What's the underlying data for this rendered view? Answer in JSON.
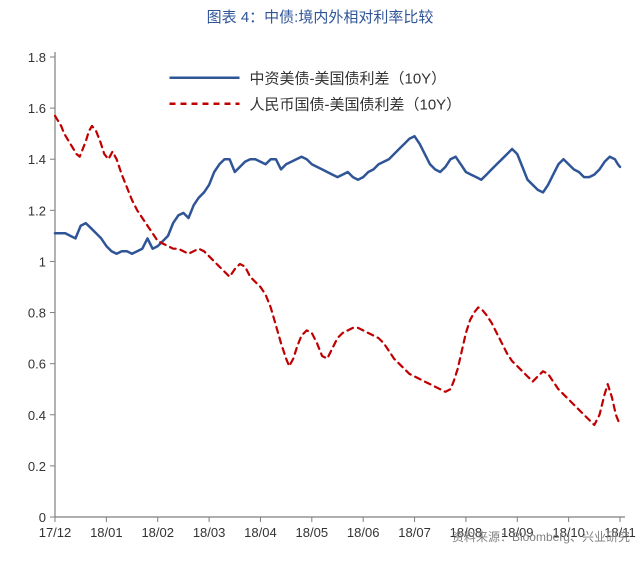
{
  "title": "图表 4：中债:境内外相对利率比较",
  "title_color": "#2f5597",
  "title_fontsize": 15,
  "source": "资料来源：Bloomberg、兴业研究",
  "source_color": "#7f7f7f",
  "chart": {
    "type": "line",
    "background_color": "#ffffff",
    "axis_color": "#7f7f7f",
    "tick_color": "#7f7f7f",
    "tick_fontsize": 13,
    "y": {
      "min": 0,
      "max": 1.8,
      "step": 0.2
    },
    "x": {
      "labels": [
        "17/12",
        "18/01",
        "18/02",
        "18/03",
        "18/04",
        "18/05",
        "18/06",
        "18/07",
        "18/08",
        "18/09",
        "18/10",
        "18/11"
      ]
    },
    "legend": {
      "x": 0.3,
      "y_top": 0.045,
      "fontsize": 15,
      "text_color": "#333333"
    },
    "series": [
      {
        "name": "中资美债-美国债利差（10Y）",
        "color": "#2f5597",
        "width": 2.5,
        "dash": "none",
        "points": [
          [
            0.0,
            1.11
          ],
          [
            0.05,
            1.11
          ],
          [
            0.1,
            1.11
          ],
          [
            0.15,
            1.1
          ],
          [
            0.2,
            1.09
          ],
          [
            0.25,
            1.14
          ],
          [
            0.3,
            1.15
          ],
          [
            0.35,
            1.13
          ],
          [
            0.4,
            1.11
          ],
          [
            0.45,
            1.09
          ],
          [
            0.5,
            1.06
          ],
          [
            0.55,
            1.04
          ],
          [
            0.6,
            1.03
          ],
          [
            0.65,
            1.04
          ],
          [
            0.7,
            1.04
          ],
          [
            0.75,
            1.03
          ],
          [
            0.8,
            1.04
          ],
          [
            0.85,
            1.05
          ],
          [
            0.9,
            1.09
          ],
          [
            0.95,
            1.05
          ],
          [
            1.0,
            1.06
          ],
          [
            1.05,
            1.08
          ],
          [
            1.1,
            1.1
          ],
          [
            1.15,
            1.15
          ],
          [
            1.2,
            1.18
          ],
          [
            1.25,
            1.19
          ],
          [
            1.3,
            1.17
          ],
          [
            1.35,
            1.22
          ],
          [
            1.4,
            1.25
          ],
          [
            1.45,
            1.27
          ],
          [
            1.5,
            1.3
          ],
          [
            1.55,
            1.35
          ],
          [
            1.6,
            1.38
          ],
          [
            1.65,
            1.4
          ],
          [
            1.7,
            1.4
          ],
          [
            1.75,
            1.35
          ],
          [
            1.8,
            1.37
          ],
          [
            1.85,
            1.39
          ],
          [
            1.9,
            1.4
          ],
          [
            1.95,
            1.4
          ],
          [
            2.0,
            1.39
          ],
          [
            2.05,
            1.38
          ],
          [
            2.1,
            1.4
          ],
          [
            2.15,
            1.4
          ],
          [
            2.2,
            1.36
          ],
          [
            2.25,
            1.38
          ],
          [
            2.3,
            1.39
          ],
          [
            2.35,
            1.4
          ],
          [
            2.4,
            1.41
          ],
          [
            2.45,
            1.4
          ],
          [
            2.5,
            1.38
          ],
          [
            2.55,
            1.37
          ],
          [
            2.6,
            1.36
          ],
          [
            2.65,
            1.35
          ],
          [
            2.7,
            1.34
          ],
          [
            2.75,
            1.33
          ],
          [
            2.8,
            1.34
          ],
          [
            2.85,
            1.35
          ],
          [
            2.9,
            1.33
          ],
          [
            2.95,
            1.32
          ],
          [
            3.0,
            1.33
          ],
          [
            3.05,
            1.35
          ],
          [
            3.1,
            1.36
          ],
          [
            3.15,
            1.38
          ],
          [
            3.2,
            1.39
          ],
          [
            3.25,
            1.4
          ],
          [
            3.3,
            1.42
          ],
          [
            3.35,
            1.44
          ],
          [
            3.4,
            1.46
          ],
          [
            3.45,
            1.48
          ],
          [
            3.5,
            1.49
          ],
          [
            3.55,
            1.46
          ],
          [
            3.6,
            1.42
          ],
          [
            3.65,
            1.38
          ],
          [
            3.7,
            1.36
          ],
          [
            3.75,
            1.35
          ],
          [
            3.8,
            1.37
          ],
          [
            3.85,
            1.4
          ],
          [
            3.9,
            1.41
          ],
          [
            3.95,
            1.38
          ],
          [
            4.0,
            1.35
          ],
          [
            4.05,
            1.34
          ],
          [
            4.1,
            1.33
          ],
          [
            4.15,
            1.32
          ],
          [
            4.2,
            1.34
          ],
          [
            4.25,
            1.36
          ],
          [
            4.3,
            1.38
          ],
          [
            4.35,
            1.4
          ],
          [
            4.4,
            1.42
          ],
          [
            4.45,
            1.44
          ],
          [
            4.5,
            1.42
          ],
          [
            4.55,
            1.37
          ],
          [
            4.6,
            1.32
          ],
          [
            4.65,
            1.3
          ],
          [
            4.7,
            1.28
          ],
          [
            4.75,
            1.27
          ],
          [
            4.8,
            1.3
          ],
          [
            4.85,
            1.34
          ],
          [
            4.9,
            1.38
          ],
          [
            4.95,
            1.4
          ],
          [
            5.0,
            1.38
          ],
          [
            5.05,
            1.36
          ],
          [
            5.1,
            1.35
          ],
          [
            5.15,
            1.33
          ],
          [
            5.2,
            1.33
          ],
          [
            5.25,
            1.34
          ],
          [
            5.3,
            1.36
          ],
          [
            5.35,
            1.39
          ],
          [
            5.4,
            1.41
          ],
          [
            5.45,
            1.4
          ],
          [
            5.48,
            1.38
          ],
          [
            5.5,
            1.37
          ]
        ]
      },
      {
        "name": "人民币国债-美国债利差（10Y）",
        "color": "#c00000",
        "width": 2.2,
        "dash": "6,5",
        "points": [
          [
            0.0,
            1.57
          ],
          [
            0.03,
            1.55
          ],
          [
            0.06,
            1.53
          ],
          [
            0.09,
            1.5
          ],
          [
            0.12,
            1.48
          ],
          [
            0.15,
            1.46
          ],
          [
            0.18,
            1.44
          ],
          [
            0.21,
            1.42
          ],
          [
            0.24,
            1.41
          ],
          [
            0.3,
            1.47
          ],
          [
            0.33,
            1.51
          ],
          [
            0.36,
            1.53
          ],
          [
            0.4,
            1.51
          ],
          [
            0.44,
            1.47
          ],
          [
            0.48,
            1.42
          ],
          [
            0.52,
            1.4
          ],
          [
            0.56,
            1.43
          ],
          [
            0.6,
            1.4
          ],
          [
            0.65,
            1.34
          ],
          [
            0.7,
            1.29
          ],
          [
            0.75,
            1.24
          ],
          [
            0.8,
            1.2
          ],
          [
            0.85,
            1.17
          ],
          [
            0.9,
            1.14
          ],
          [
            0.95,
            1.11
          ],
          [
            1.0,
            1.08
          ],
          [
            1.05,
            1.07
          ],
          [
            1.1,
            1.06
          ],
          [
            1.15,
            1.05
          ],
          [
            1.2,
            1.05
          ],
          [
            1.25,
            1.04
          ],
          [
            1.3,
            1.03
          ],
          [
            1.35,
            1.04
          ],
          [
            1.4,
            1.05
          ],
          [
            1.45,
            1.04
          ],
          [
            1.5,
            1.02
          ],
          [
            1.55,
            1.0
          ],
          [
            1.6,
            0.98
          ],
          [
            1.65,
            0.96
          ],
          [
            1.7,
            0.94
          ],
          [
            1.75,
            0.97
          ],
          [
            1.8,
            0.99
          ],
          [
            1.85,
            0.98
          ],
          [
            1.9,
            0.94
          ],
          [
            1.95,
            0.92
          ],
          [
            2.0,
            0.9
          ],
          [
            2.05,
            0.87
          ],
          [
            2.1,
            0.82
          ],
          [
            2.15,
            0.75
          ],
          [
            2.2,
            0.68
          ],
          [
            2.25,
            0.62
          ],
          [
            2.28,
            0.59
          ],
          [
            2.32,
            0.62
          ],
          [
            2.36,
            0.67
          ],
          [
            2.4,
            0.71
          ],
          [
            2.45,
            0.73
          ],
          [
            2.5,
            0.72
          ],
          [
            2.55,
            0.68
          ],
          [
            2.6,
            0.63
          ],
          [
            2.65,
            0.62
          ],
          [
            2.7,
            0.66
          ],
          [
            2.75,
            0.7
          ],
          [
            2.8,
            0.72
          ],
          [
            2.85,
            0.73
          ],
          [
            2.9,
            0.74
          ],
          [
            2.95,
            0.74
          ],
          [
            3.0,
            0.73
          ],
          [
            3.05,
            0.72
          ],
          [
            3.1,
            0.71
          ],
          [
            3.15,
            0.7
          ],
          [
            3.2,
            0.68
          ],
          [
            3.25,
            0.65
          ],
          [
            3.3,
            0.62
          ],
          [
            3.35,
            0.6
          ],
          [
            3.4,
            0.58
          ],
          [
            3.45,
            0.56
          ],
          [
            3.5,
            0.55
          ],
          [
            3.55,
            0.54
          ],
          [
            3.6,
            0.53
          ],
          [
            3.65,
            0.52
          ],
          [
            3.7,
            0.51
          ],
          [
            3.75,
            0.5
          ],
          [
            3.8,
            0.49
          ],
          [
            3.85,
            0.5
          ],
          [
            3.88,
            0.53
          ],
          [
            3.92,
            0.58
          ],
          [
            3.96,
            0.65
          ],
          [
            4.0,
            0.72
          ],
          [
            4.04,
            0.77
          ],
          [
            4.08,
            0.8
          ],
          [
            4.12,
            0.82
          ],
          [
            4.16,
            0.81
          ],
          [
            4.2,
            0.79
          ],
          [
            4.25,
            0.76
          ],
          [
            4.3,
            0.72
          ],
          [
            4.35,
            0.68
          ],
          [
            4.4,
            0.64
          ],
          [
            4.45,
            0.61
          ],
          [
            4.5,
            0.59
          ],
          [
            4.55,
            0.57
          ],
          [
            4.6,
            0.55
          ],
          [
            4.65,
            0.53
          ],
          [
            4.7,
            0.55
          ],
          [
            4.75,
            0.57
          ],
          [
            4.8,
            0.56
          ],
          [
            4.85,
            0.53
          ],
          [
            4.9,
            0.5
          ],
          [
            4.95,
            0.48
          ],
          [
            5.0,
            0.46
          ],
          [
            5.05,
            0.44
          ],
          [
            5.1,
            0.42
          ],
          [
            5.15,
            0.4
          ],
          [
            5.2,
            0.38
          ],
          [
            5.25,
            0.36
          ],
          [
            5.3,
            0.4
          ],
          [
            5.35,
            0.48
          ],
          [
            5.38,
            0.52
          ],
          [
            5.42,
            0.47
          ],
          [
            5.46,
            0.4
          ],
          [
            5.5,
            0.36
          ]
        ]
      }
    ]
  }
}
